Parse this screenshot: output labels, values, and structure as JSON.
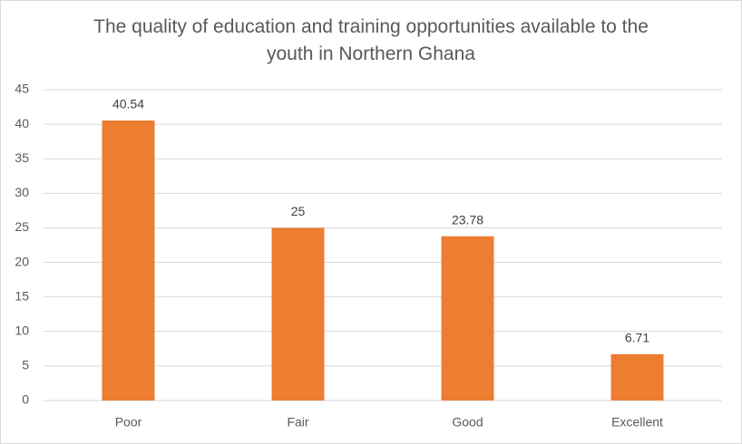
{
  "chart_data": {
    "type": "bar",
    "title": "The quality of education and training opportunities available to the youth in Northern Ghana",
    "categories": [
      "Poor",
      "Fair",
      "Good",
      "Excellent"
    ],
    "values": [
      40.54,
      25,
      23.78,
      6.71
    ],
    "color": "#ed7d31",
    "ylim": [
      0,
      45
    ],
    "yticks": [
      0,
      5,
      10,
      15,
      20,
      25,
      30,
      35,
      40,
      45
    ],
    "grid": true
  }
}
